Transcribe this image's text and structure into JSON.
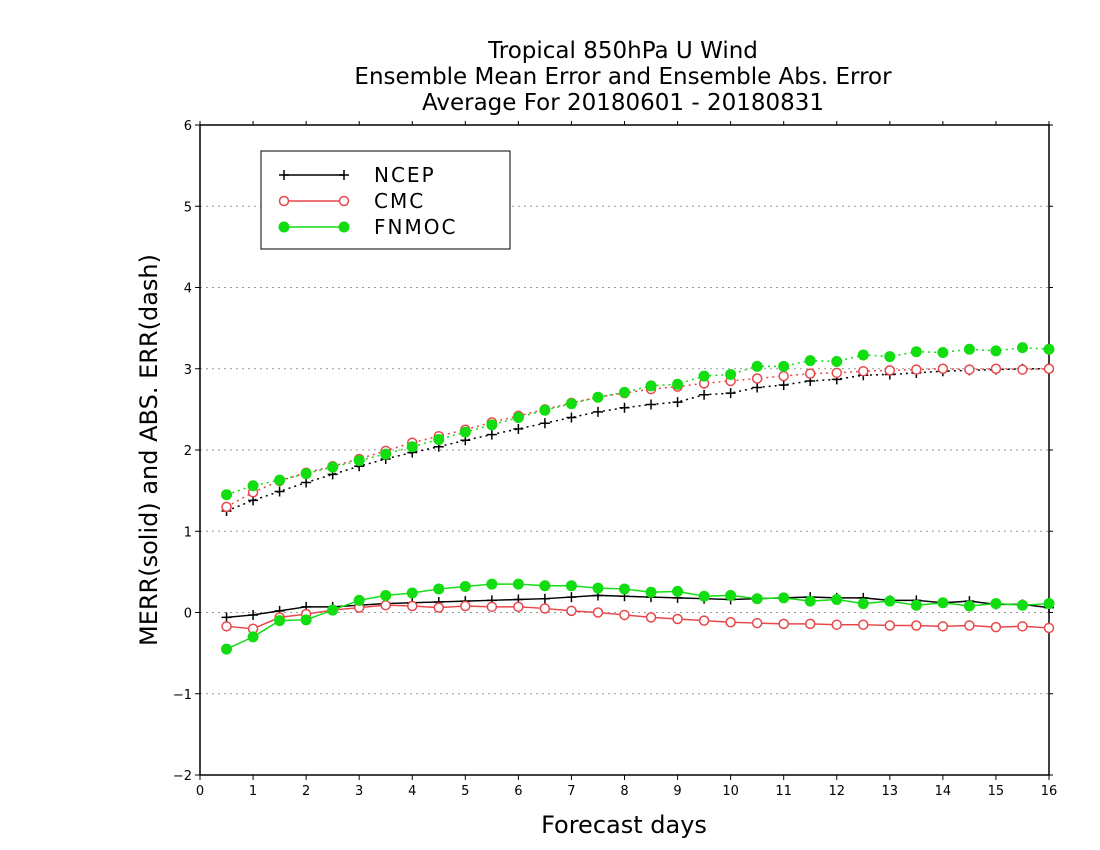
{
  "chart_data": {
    "type": "line",
    "title": [
      "Tropical 850hPa U Wind",
      "Ensemble Mean Error and Ensemble Abs. Error",
      "Average For 20180601 - 20180831"
    ],
    "xlabel": "Forecast days",
    "ylabel": "MERR(solid) and ABS. ERR(dash)",
    "xlim": [
      0,
      16
    ],
    "ylim": [
      -2,
      6
    ],
    "xticks": [
      0,
      1,
      2,
      3,
      4,
      5,
      6,
      7,
      8,
      9,
      10,
      11,
      12,
      13,
      14,
      15,
      16
    ],
    "yticks": [
      -2,
      -1,
      0,
      1,
      2,
      3,
      4,
      5,
      6
    ],
    "grid": "horizontal dotted",
    "legend_position": "top-left",
    "x": [
      0.5,
      1,
      1.5,
      2,
      2.5,
      3,
      3.5,
      4,
      4.5,
      5,
      5.5,
      6,
      6.5,
      7,
      7.5,
      8,
      8.5,
      9,
      9.5,
      10,
      10.5,
      11,
      11.5,
      12,
      12.5,
      13,
      13.5,
      14,
      14.5,
      15,
      15.5,
      16
    ],
    "series": [
      {
        "name": "NCEP",
        "color": "#000000",
        "marker": "plus",
        "merr": [
          -0.06,
          -0.03,
          0.02,
          0.07,
          0.07,
          0.09,
          0.11,
          0.12,
          0.13,
          0.14,
          0.15,
          0.16,
          0.17,
          0.19,
          0.21,
          0.2,
          0.19,
          0.18,
          0.17,
          0.16,
          0.17,
          0.18,
          0.19,
          0.18,
          0.18,
          0.15,
          0.15,
          0.12,
          0.14,
          0.1,
          0.1,
          0.06
        ],
        "abs_err": [
          1.25,
          1.38,
          1.49,
          1.6,
          1.7,
          1.8,
          1.89,
          1.97,
          2.04,
          2.12,
          2.19,
          2.26,
          2.33,
          2.4,
          2.47,
          2.52,
          2.56,
          2.59,
          2.68,
          2.7,
          2.77,
          2.8,
          2.85,
          2.87,
          2.92,
          2.93,
          2.95,
          2.97,
          2.98,
          2.99,
          3.0,
          3.0
        ]
      },
      {
        "name": "CMC",
        "color": "#e8474a",
        "marker": "open-circle",
        "merr": [
          -0.17,
          -0.2,
          -0.06,
          -0.02,
          0.03,
          0.06,
          0.09,
          0.08,
          0.06,
          0.08,
          0.07,
          0.07,
          0.05,
          0.02,
          0.0,
          -0.03,
          -0.06,
          -0.08,
          -0.1,
          -0.12,
          -0.13,
          -0.14,
          -0.14,
          -0.15,
          -0.15,
          -0.16,
          -0.16,
          -0.17,
          -0.16,
          -0.18,
          -0.17,
          -0.19
        ],
        "abs_err": [
          1.3,
          1.48,
          1.62,
          1.72,
          1.8,
          1.89,
          1.99,
          2.09,
          2.17,
          2.25,
          2.34,
          2.42,
          2.5,
          2.58,
          2.65,
          2.7,
          2.75,
          2.78,
          2.82,
          2.85,
          2.88,
          2.91,
          2.94,
          2.95,
          2.97,
          2.98,
          2.99,
          3.0,
          2.99,
          3.0,
          2.99,
          3.0
        ]
      },
      {
        "name": "FNMOC",
        "color": "#11dd11",
        "marker": "filled-circle",
        "merr": [
          -0.45,
          -0.3,
          -0.1,
          -0.09,
          0.03,
          0.15,
          0.21,
          0.24,
          0.29,
          0.32,
          0.35,
          0.35,
          0.33,
          0.33,
          0.3,
          0.29,
          0.25,
          0.26,
          0.2,
          0.21,
          0.17,
          0.18,
          0.14,
          0.16,
          0.11,
          0.14,
          0.09,
          0.12,
          0.08,
          0.11,
          0.09,
          0.11
        ],
        "abs_err": [
          1.45,
          1.56,
          1.63,
          1.71,
          1.79,
          1.87,
          1.95,
          2.04,
          2.13,
          2.22,
          2.31,
          2.4,
          2.49,
          2.57,
          2.65,
          2.71,
          2.79,
          2.81,
          2.91,
          2.93,
          3.03,
          3.03,
          3.1,
          3.09,
          3.17,
          3.15,
          3.21,
          3.2,
          3.24,
          3.22,
          3.26,
          3.24
        ]
      }
    ]
  }
}
